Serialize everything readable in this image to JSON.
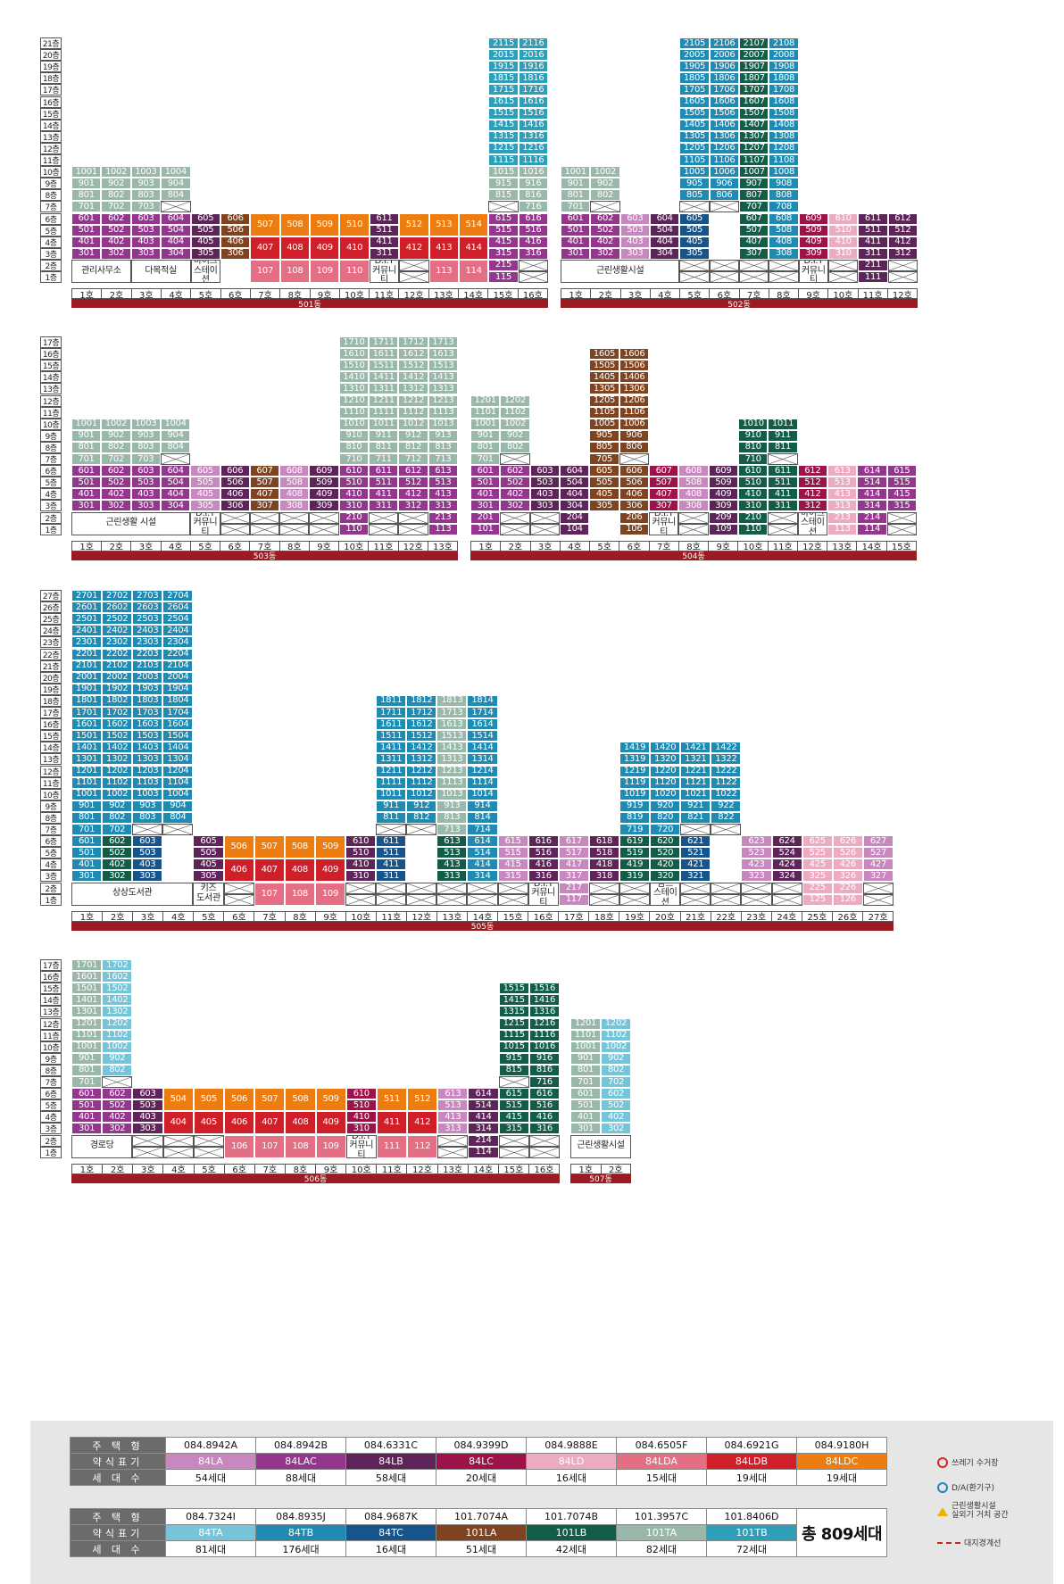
{
  "colors": {
    "84LA": "#c987bf",
    "84LAC": "#94358e",
    "84LB": "#5e2358",
    "84LC": "#9c1249",
    "84LD": "#ecaac3",
    "84LDA": "#e46f84",
    "84LDB": "#cf1f28",
    "84LDC": "#ee7d11",
    "84TA": "#74c5da",
    "84TB": "#1f8bb3",
    "84TC": "#17548b",
    "101LA": "#7f4320",
    "101LB": "#135c47",
    "101TA": "#9ab8aa",
    "101TB": "#2d9fb8"
  },
  "blocks": [
    {
      "dong": "501동",
      "x": 80,
      "width": 534,
      "maxFloor": 21,
      "lines": 16,
      "lineLabels": [
        "1호",
        "2호",
        "3호",
        "4호",
        "5호",
        "6호",
        "7호",
        "8호",
        "9호",
        "10호",
        "11호",
        "12호",
        "13호",
        "14호",
        "15호",
        "16호"
      ],
      "floors": [
        "21층",
        "20층",
        "19층",
        "18층",
        "17층",
        "16층",
        "15층",
        "14층",
        "13층",
        "12층",
        "11층",
        "10층",
        "9층",
        "8층",
        "7층",
        "6층",
        "5층",
        "4층",
        "3층",
        "2층",
        "1층"
      ]
    },
    {
      "dong": "502동",
      "x": 628,
      "width": 400,
      "maxFloor": 21,
      "lines": 12,
      "lineLabels": [
        "1호",
        "2호",
        "3호",
        "4호",
        "5호",
        "6호",
        "7호",
        "8호",
        "9호",
        "10호",
        "11호",
        "12호"
      ]
    },
    {
      "dong": "503동",
      "x": 80,
      "width": 433,
      "maxFloor": 17,
      "lines": 13,
      "lineLabels": [
        "1호",
        "2호",
        "3호",
        "4호",
        "5호",
        "6호",
        "7호",
        "8호",
        "9호",
        "10호",
        "11호",
        "12호",
        "13호"
      ],
      "floors": [
        "17층",
        "16층",
        "15층",
        "14층",
        "13층",
        "12층",
        "11층",
        "10층",
        "9층",
        "8층",
        "7층",
        "6층",
        "5층",
        "4층",
        "3층",
        "2층",
        "1층"
      ]
    },
    {
      "dong": "504동",
      "x": 527,
      "width": 500,
      "maxFloor": 17,
      "lines": 15,
      "lineLabels": [
        "1호",
        "2호",
        "3호",
        "4호",
        "5호",
        "6호",
        "7호",
        "8호",
        "9호",
        "10호",
        "11호",
        "12호",
        "13호",
        "14호",
        "15호"
      ]
    },
    {
      "dong": "505동",
      "x": 80,
      "width": 921,
      "maxFloor": 27,
      "lines": 27,
      "lineLabels": [
        "1호",
        "2호",
        "3호",
        "4호",
        "5호",
        "6호",
        "7호",
        "8호",
        "9호",
        "10호",
        "11호",
        "12호",
        "13호",
        "14호",
        "15호",
        "16호",
        "17호",
        "18호",
        "19호",
        "20호",
        "21호",
        "22호",
        "23호",
        "24호",
        "25호",
        "26호",
        "27호"
      ],
      "floors": [
        "27층",
        "26층",
        "25층",
        "24층",
        "23층",
        "22층",
        "21층",
        "20층",
        "19층",
        "18층",
        "17층",
        "16층",
        "15층",
        "14층",
        "13층",
        "12층",
        "11층",
        "10층",
        "9층",
        "8층",
        "7층",
        "6층",
        "5층",
        "4층",
        "3층",
        "2층",
        "1층"
      ]
    },
    {
      "dong": "506동",
      "x": 80,
      "width": 547,
      "maxFloor": 17,
      "lines": 16,
      "lineLabels": [
        "1호",
        "2호",
        "3호",
        "4호",
        "5호",
        "6호",
        "7호",
        "8호",
        "9호",
        "10호",
        "11호",
        "12호",
        "13호",
        "14호",
        "15호",
        "16호"
      ],
      "floors": [
        "17층",
        "16층",
        "15층",
        "14층",
        "13층",
        "12층",
        "11층",
        "10층",
        "9층",
        "8층",
        "7층",
        "6층",
        "5층",
        "4층",
        "3층",
        "2층",
        "1층"
      ]
    },
    {
      "dong": "507동",
      "x": 639,
      "width": 68,
      "maxFloor": 17,
      "lines": 2,
      "lineLabels": [
        "1호",
        "2호"
      ]
    }
  ],
  "facilities": {
    "b501_1": "관리사무소",
    "b501_2": "다목적실",
    "b501_3": "바이크\n스테이션",
    "b501_4": "D.I.Y\n커뮤니티",
    "b502_1": "근린생활시설",
    "b502_2": "D.I.Y\n커뮤니티",
    "b503_1": "근린생활 시설",
    "b503_2": "D.I.Y\n커뮤니티",
    "b504_1": "D.I.Y\n커뮤니티",
    "b504_2": "바이크\n스테이션",
    "b505_1": "상상도서관",
    "b505_2": "키즈\n도서관",
    "b505_3": "D.I.Y\n커뮤니티",
    "b505_4": "맘스\n스테이션",
    "b506_1": "경로당",
    "b506_2": "D.I.Y\n커뮤니티",
    "b507_1": "근린생활시설"
  },
  "legend": {
    "row_headers": {
      "type": "주 택 형",
      "mark": "약식표기",
      "count": "세 대 수"
    },
    "table1": [
      {
        "type": "084.8942A",
        "mark": "84LA",
        "count": "54세대"
      },
      {
        "type": "084.8942B",
        "mark": "84LAC",
        "count": "88세대"
      },
      {
        "type": "084.6331C",
        "mark": "84LB",
        "count": "58세대"
      },
      {
        "type": "084.9399D",
        "mark": "84LC",
        "count": "20세대"
      },
      {
        "type": "084.9888E",
        "mark": "84LD",
        "count": "16세대"
      },
      {
        "type": "084.6505F",
        "mark": "84LDA",
        "count": "15세대"
      },
      {
        "type": "084.6921G",
        "mark": "84LDB",
        "count": "19세대"
      },
      {
        "type": "084.9180H",
        "mark": "84LDC",
        "count": "19세대"
      }
    ],
    "table2": [
      {
        "type": "084.7324I",
        "mark": "84TA",
        "count": "81세대"
      },
      {
        "type": "084.8935J",
        "mark": "84TB",
        "count": "176세대"
      },
      {
        "type": "084.9687K",
        "mark": "84TC",
        "count": "16세대"
      },
      {
        "type": "101.7074A",
        "mark": "101LA",
        "count": "51세대"
      },
      {
        "type": "101.7074B",
        "mark": "101LB",
        "count": "42세대"
      },
      {
        "type": "101.3957C",
        "mark": "101TA",
        "count": "82세대"
      },
      {
        "type": "101.8406D",
        "mark": "101TB",
        "count": "72세대"
      }
    ],
    "total": "총 809세대",
    "notes": {
      "trash": "쓰레기 수거장",
      "da": "D/A(환기구)",
      "retail": "근린생활시설\n실외기 거치 공간",
      "boundary": "대지경계선"
    }
  }
}
